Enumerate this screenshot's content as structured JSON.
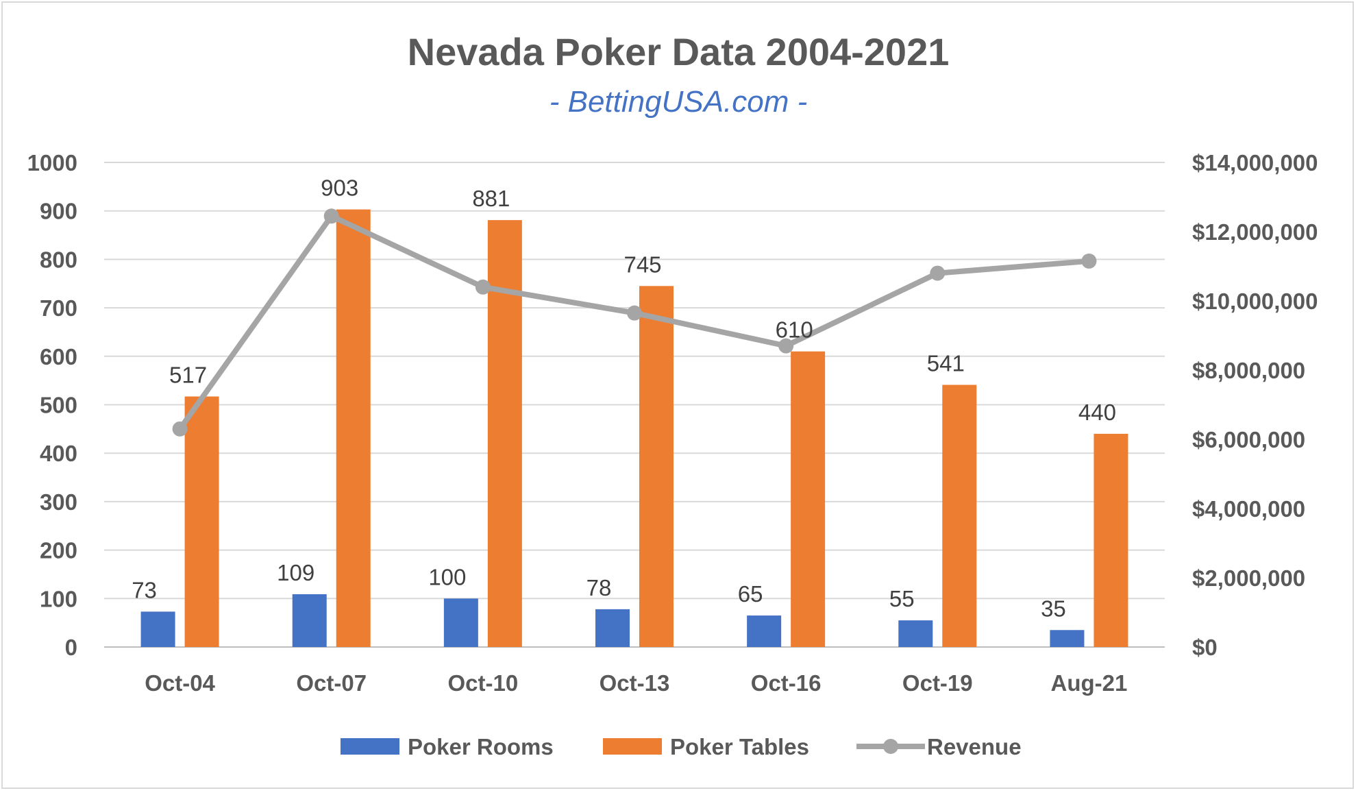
{
  "chart_data": {
    "type": "bar",
    "title": "Nevada Poker Data 2004-2021",
    "subtitle": "- BettingUSA.com -",
    "categories": [
      "Oct-04",
      "Oct-07",
      "Oct-10",
      "Oct-13",
      "Oct-16",
      "Oct-19",
      "Aug-21"
    ],
    "series": [
      {
        "name": "Poker Rooms",
        "type": "bar",
        "axis": "left",
        "color": "#4472c4",
        "values": [
          73,
          109,
          100,
          78,
          65,
          55,
          35
        ],
        "labels": [
          "73",
          "109",
          "100",
          "78",
          "65",
          "55",
          "35"
        ]
      },
      {
        "name": "Poker Tables",
        "type": "bar",
        "axis": "left",
        "color": "#ed7d31",
        "values": [
          517,
          903,
          881,
          745,
          610,
          541,
          440
        ],
        "labels": [
          "517",
          "903",
          "881",
          "745",
          "610",
          "541",
          "440"
        ]
      },
      {
        "name": "Revenue",
        "type": "line",
        "axis": "right",
        "color": "#a5a5a5",
        "values": [
          6300000,
          12450000,
          10400000,
          9650000,
          8700000,
          10800000,
          11150000
        ]
      }
    ],
    "y_left": {
      "min": 0,
      "max": 1000,
      "ticks": [
        "0",
        "100",
        "200",
        "300",
        "400",
        "500",
        "600",
        "700",
        "800",
        "900",
        "1000"
      ]
    },
    "y_right": {
      "min": 0,
      "max": 14000000,
      "ticks": [
        "$0",
        "$2,000,000",
        "$4,000,000",
        "$6,000,000",
        "$8,000,000",
        "$10,000,000",
        "$12,000,000",
        "$14,000,000"
      ]
    },
    "grid": true,
    "legend": "bottom"
  }
}
